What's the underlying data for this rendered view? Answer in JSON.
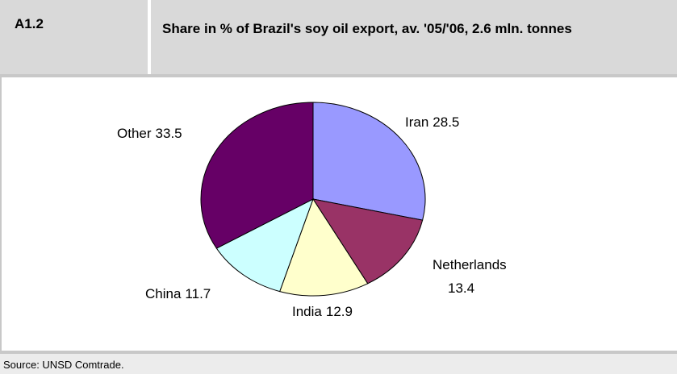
{
  "header": {
    "label": "A1.2",
    "title": "Share in % of Brazil's soy oil export, av. '05/'06, 2.6 mln. tonnes"
  },
  "chart_data": {
    "type": "pie",
    "categories": [
      "Iran",
      "Netherlands",
      "India",
      "China",
      "Other"
    ],
    "values": [
      28.5,
      13.4,
      12.9,
      11.7,
      33.5
    ],
    "colors": [
      "#9999ff",
      "#993366",
      "#ffffcc",
      "#ccffff",
      "#660066"
    ]
  },
  "source": "Source: UNSD Comtrade."
}
